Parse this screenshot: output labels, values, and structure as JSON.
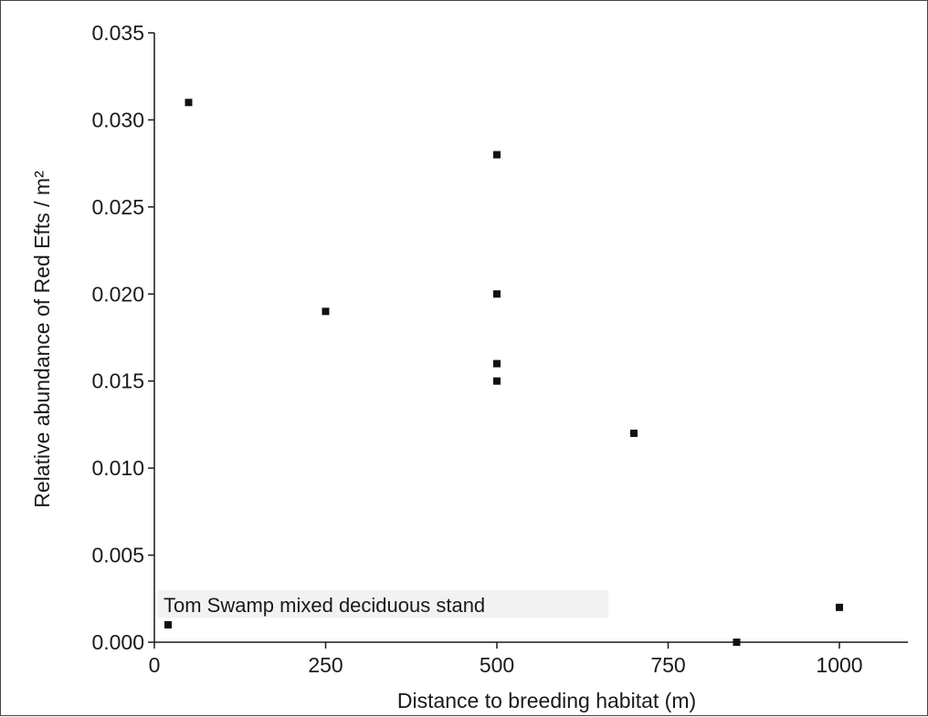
{
  "chart_data": {
    "type": "scatter",
    "title": "",
    "xlabel": "Distance to breeding habitat (m)",
    "ylabel": "Relative abundance of Red Efts / m²",
    "xlim": [
      0,
      1100
    ],
    "ylim": [
      0,
      0.035
    ],
    "xticks": [
      0,
      250,
      500,
      750,
      1000
    ],
    "xtick_labels": [
      "0",
      "250",
      "500",
      "750",
      "1000"
    ],
    "yticks": [
      0,
      0.005,
      0.01,
      0.015,
      0.02,
      0.025,
      0.03,
      0.035
    ],
    "ytick_labels": [
      "0.000",
      "0.005",
      "0.010",
      "0.015",
      "0.020",
      "0.025",
      "0.030",
      "0.035"
    ],
    "grid": false,
    "marker_color": "#111111",
    "points": [
      {
        "x": 20,
        "y": 0.001
      },
      {
        "x": 50,
        "y": 0.031
      },
      {
        "x": 250,
        "y": 0.019
      },
      {
        "x": 500,
        "y": 0.028
      },
      {
        "x": 500,
        "y": 0.02
      },
      {
        "x": 500,
        "y": 0.016
      },
      {
        "x": 500,
        "y": 0.015
      },
      {
        "x": 700,
        "y": 0.012
      },
      {
        "x": 850,
        "y": 0.0
      },
      {
        "x": 1000,
        "y": 0.002
      }
    ],
    "annotations": [
      {
        "text": "Tom Swamp mixed deciduous stand",
        "x": 20,
        "y": 0.001
      }
    ]
  }
}
